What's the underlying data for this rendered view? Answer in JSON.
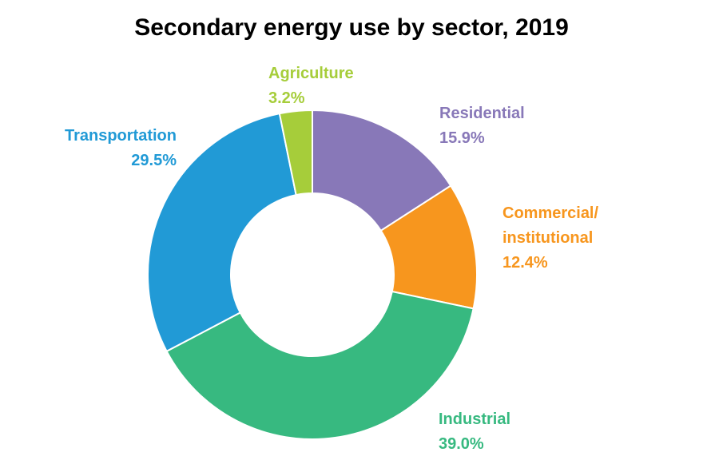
{
  "chart_data": {
    "type": "pie",
    "title": "Secondary energy use by sector, 2019",
    "donut": true,
    "legend": "none",
    "slices": [
      {
        "label": "Residential",
        "label_lines": [
          "Residential"
        ],
        "value": 15.9,
        "value_text": "15.9%",
        "color": "#8878b8"
      },
      {
        "label": "Commercial/ institutional",
        "label_lines": [
          "Commercial/",
          "institutional"
        ],
        "value": 12.4,
        "value_text": "12.4%",
        "color": "#f7961e"
      },
      {
        "label": "Industrial",
        "label_lines": [
          "Industrial"
        ],
        "value": 39.0,
        "value_text": "39.0%",
        "color": "#37b980"
      },
      {
        "label": "Transportation",
        "label_lines": [
          "Transportation"
        ],
        "value": 29.5,
        "value_text": "29.5%",
        "color": "#219ad6"
      },
      {
        "label": "Agriculture",
        "label_lines": [
          "Agriculture"
        ],
        "value": 3.2,
        "value_text": "3.2%",
        "color": "#a6cd3a"
      }
    ]
  }
}
